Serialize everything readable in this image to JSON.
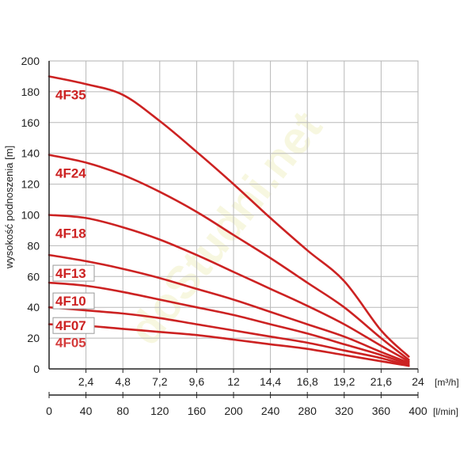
{
  "chart_data": {
    "type": "line",
    "ylabel": "wysokość podnoszenia [m]",
    "ylim": [
      0,
      200
    ],
    "y_ticks": [
      "0",
      "20",
      "40",
      "60",
      "80",
      "100",
      "120",
      "140",
      "160",
      "180",
      "200"
    ],
    "x_axis_primary": {
      "unit": "[m³/h]",
      "xlim": [
        0,
        24
      ],
      "tick_values": [
        2.4,
        4.8,
        7.2,
        9.6,
        12,
        14.4,
        16.8,
        19.2,
        21.6,
        24
      ],
      "tick_labels": [
        "2,4",
        "4,8",
        "7,2",
        "9,6",
        "12",
        "14,4",
        "16,8",
        "19,2",
        "21,6",
        "24"
      ]
    },
    "x_axis_secondary": {
      "unit": "[l/min]",
      "xlim": [
        0,
        400
      ],
      "tick_values": [
        0,
        40,
        80,
        120,
        160,
        200,
        240,
        280,
        320,
        360,
        400
      ],
      "tick_labels": [
        "0",
        "40",
        "80",
        "120",
        "160",
        "200",
        "240",
        "280",
        "320",
        "360",
        "400"
      ]
    },
    "grid": true,
    "line_color": "#cc2222",
    "series": [
      {
        "name": "4F35",
        "boxed": false,
        "x": [
          0,
          2.4,
          4.8,
          7.2,
          9.6,
          12,
          14.4,
          16.8,
          19.2,
          21.6,
          23.4
        ],
        "y": [
          190,
          185,
          178,
          161,
          141,
          120,
          98,
          77,
          57,
          25,
          8
        ]
      },
      {
        "name": "4F24",
        "boxed": false,
        "x": [
          0,
          2.4,
          4.8,
          7.2,
          9.6,
          12,
          14.4,
          16.8,
          19.2,
          21.6,
          23.4
        ],
        "y": [
          139,
          134,
          126,
          115,
          102,
          87,
          72,
          56,
          40,
          20,
          6
        ]
      },
      {
        "name": "4F18",
        "boxed": false,
        "x": [
          0,
          2.4,
          4.8,
          7.2,
          9.6,
          12,
          14.4,
          16.8,
          19.2,
          21.6,
          23.4
        ],
        "y": [
          100,
          98,
          92,
          84,
          74,
          63,
          52,
          41,
          29,
          15,
          5
        ]
      },
      {
        "name": "4F13",
        "boxed": true,
        "x": [
          0,
          2.4,
          4.8,
          7.2,
          9.6,
          12,
          14.4,
          16.8,
          19.2,
          21.6,
          23.4
        ],
        "y": [
          74,
          70,
          65,
          59,
          52,
          45,
          37,
          29,
          21,
          11,
          4
        ]
      },
      {
        "name": "4F10",
        "boxed": true,
        "x": [
          0,
          2.4,
          4.8,
          7.2,
          9.6,
          12,
          14.4,
          16.8,
          19.2,
          21.6,
          23.4
        ],
        "y": [
          56,
          54,
          50,
          45,
          40,
          35,
          29,
          23,
          16,
          9,
          3
        ]
      },
      {
        "name": "4F07",
        "boxed": true,
        "x": [
          0,
          2.4,
          4.8,
          7.2,
          9.6,
          12,
          14.4,
          16.8,
          19.2,
          21.6,
          23.4
        ],
        "y": [
          40,
          38,
          36,
          33,
          29,
          25,
          21,
          17,
          12,
          7,
          2
        ]
      },
      {
        "name": "4F05",
        "boxed": false,
        "x": [
          0,
          2.4,
          4.8,
          7.2,
          9.6,
          12,
          14.4,
          16.8,
          19.2,
          21.6,
          23.4
        ],
        "y": [
          29,
          28,
          26,
          24,
          22,
          19,
          16,
          13,
          9,
          5,
          2
        ]
      }
    ],
    "watermark": "doStudni.net"
  }
}
